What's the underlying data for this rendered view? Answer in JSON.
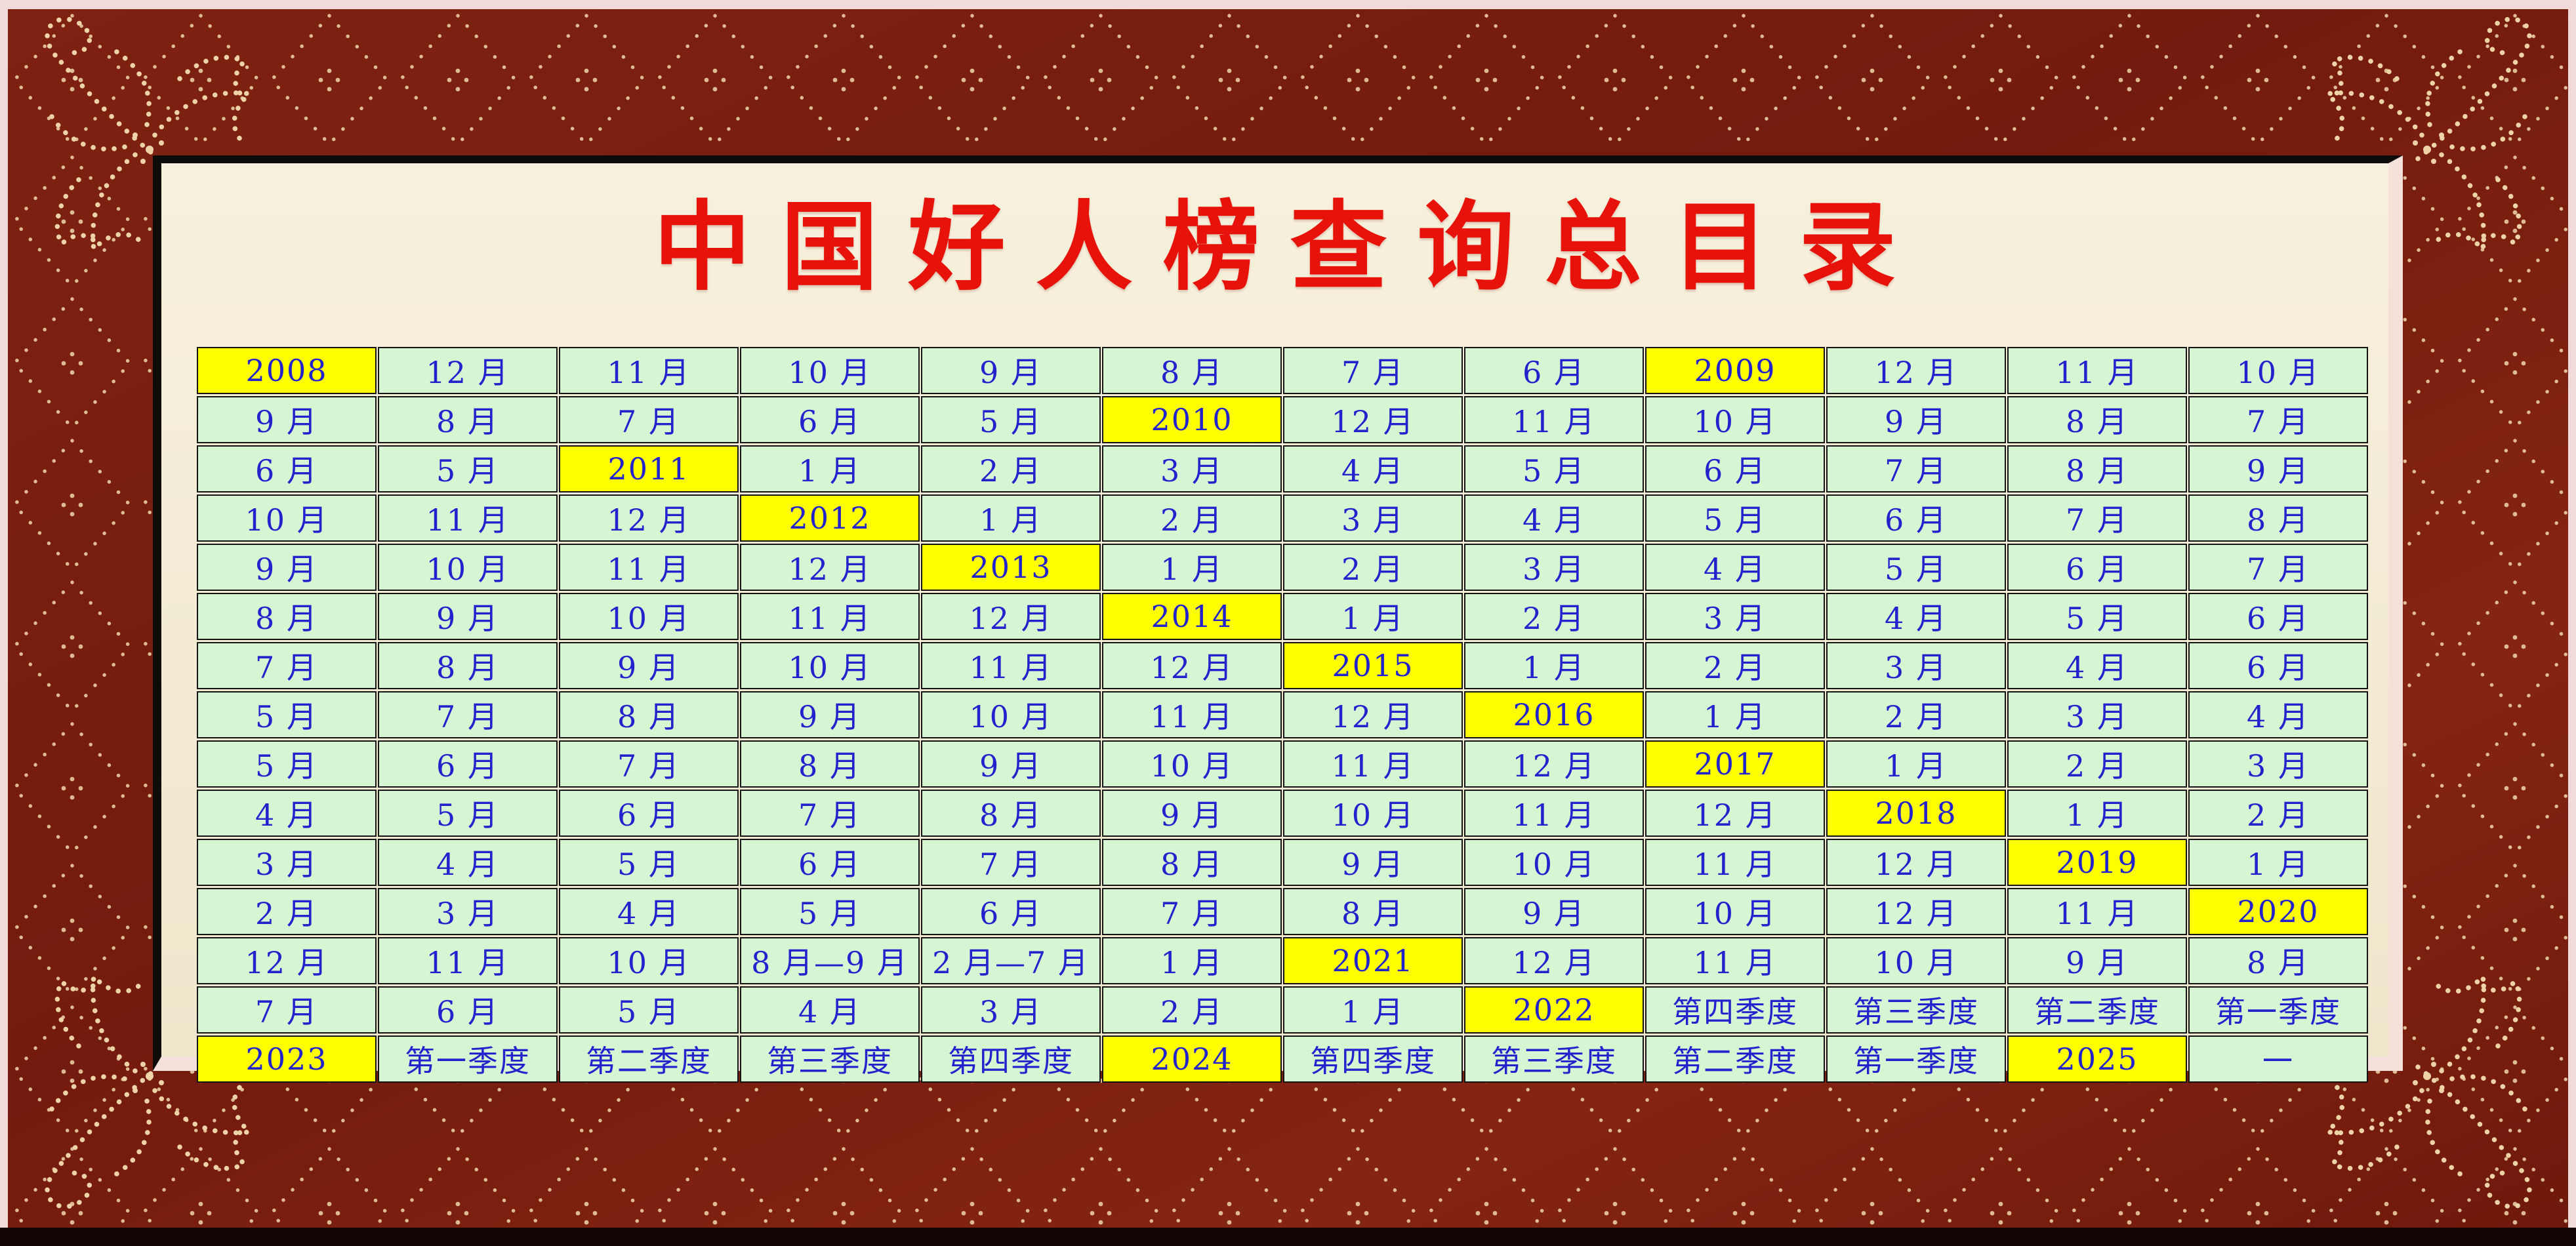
{
  "title": "中国好人榜查询总目录",
  "colors": {
    "frame_maroon": "#7c2012",
    "frame_dots_gold": "#ecd0a4",
    "outer_edge_pink": "#f3dada",
    "panel_cream": "#f4ecd7",
    "panel_shadow_black": "#0d0c0a",
    "panel_band_pink": "#f6e1da",
    "cell_green": "#d6f5d2",
    "year_highlight_yellow": "#ffff02",
    "cell_text_blue": "#2323cd",
    "title_red": "#e7120a"
  },
  "table": {
    "columns": 12,
    "rows": [
      [
        {
          "t": "2008",
          "y": 1
        },
        {
          "t": "12 月"
        },
        {
          "t": "11 月"
        },
        {
          "t": "10 月"
        },
        {
          "t": "9 月"
        },
        {
          "t": "8 月"
        },
        {
          "t": "7 月"
        },
        {
          "t": "6 月"
        },
        {
          "t": "2009",
          "y": 1
        },
        {
          "t": "12 月"
        },
        {
          "t": "11 月"
        },
        {
          "t": "10 月"
        }
      ],
      [
        {
          "t": "9 月"
        },
        {
          "t": "8 月"
        },
        {
          "t": "7 月"
        },
        {
          "t": "6 月"
        },
        {
          "t": "5 月"
        },
        {
          "t": "2010",
          "y": 1
        },
        {
          "t": "12 月"
        },
        {
          "t": "11 月"
        },
        {
          "t": "10 月"
        },
        {
          "t": "9 月"
        },
        {
          "t": "8 月"
        },
        {
          "t": "7 月"
        }
      ],
      [
        {
          "t": "6 月"
        },
        {
          "t": "5 月"
        },
        {
          "t": "2011",
          "y": 1
        },
        {
          "t": "1 月"
        },
        {
          "t": "2 月"
        },
        {
          "t": "3 月"
        },
        {
          "t": "4 月"
        },
        {
          "t": "5 月"
        },
        {
          "t": "6 月"
        },
        {
          "t": "7 月"
        },
        {
          "t": "8 月"
        },
        {
          "t": "9 月"
        }
      ],
      [
        {
          "t": "10 月"
        },
        {
          "t": "11 月"
        },
        {
          "t": "12 月"
        },
        {
          "t": "2012",
          "y": 1
        },
        {
          "t": "1 月"
        },
        {
          "t": "2 月"
        },
        {
          "t": "3 月"
        },
        {
          "t": "4 月"
        },
        {
          "t": "5 月"
        },
        {
          "t": "6 月"
        },
        {
          "t": "7 月"
        },
        {
          "t": "8 月"
        }
      ],
      [
        {
          "t": "9 月"
        },
        {
          "t": "10 月"
        },
        {
          "t": "11 月"
        },
        {
          "t": "12 月"
        },
        {
          "t": "2013",
          "y": 1
        },
        {
          "t": "1 月"
        },
        {
          "t": "2 月"
        },
        {
          "t": "3 月"
        },
        {
          "t": "4 月"
        },
        {
          "t": "5 月"
        },
        {
          "t": "6 月"
        },
        {
          "t": "7 月"
        }
      ],
      [
        {
          "t": "8 月"
        },
        {
          "t": "9 月"
        },
        {
          "t": "10 月"
        },
        {
          "t": "11 月"
        },
        {
          "t": "12 月"
        },
        {
          "t": "2014",
          "y": 1
        },
        {
          "t": "1 月"
        },
        {
          "t": "2 月"
        },
        {
          "t": "3 月"
        },
        {
          "t": "4 月"
        },
        {
          "t": "5 月"
        },
        {
          "t": "6 月"
        }
      ],
      [
        {
          "t": "7 月"
        },
        {
          "t": "8 月"
        },
        {
          "t": "9 月"
        },
        {
          "t": "10 月"
        },
        {
          "t": "11 月"
        },
        {
          "t": "12 月"
        },
        {
          "t": "2015",
          "y": 1
        },
        {
          "t": "1 月"
        },
        {
          "t": "2 月"
        },
        {
          "t": "3 月"
        },
        {
          "t": "4 月"
        },
        {
          "t": "6 月"
        }
      ],
      [
        {
          "t": "5 月"
        },
        {
          "t": "7 月"
        },
        {
          "t": "8 月"
        },
        {
          "t": "9 月"
        },
        {
          "t": "10 月"
        },
        {
          "t": "11 月"
        },
        {
          "t": "12 月"
        },
        {
          "t": "2016",
          "y": 1
        },
        {
          "t": "1 月"
        },
        {
          "t": "2 月"
        },
        {
          "t": "3 月"
        },
        {
          "t": "4 月"
        }
      ],
      [
        {
          "t": "5 月"
        },
        {
          "t": "6 月"
        },
        {
          "t": "7 月"
        },
        {
          "t": "8 月"
        },
        {
          "t": "9 月"
        },
        {
          "t": "10 月"
        },
        {
          "t": "11 月"
        },
        {
          "t": "12 月"
        },
        {
          "t": "2017",
          "y": 1
        },
        {
          "t": "1 月"
        },
        {
          "t": "2 月"
        },
        {
          "t": "3 月"
        }
      ],
      [
        {
          "t": "4 月"
        },
        {
          "t": "5 月"
        },
        {
          "t": "6 月"
        },
        {
          "t": "7 月"
        },
        {
          "t": "8 月"
        },
        {
          "t": "9 月"
        },
        {
          "t": "10 月"
        },
        {
          "t": "11 月"
        },
        {
          "t": "12 月"
        },
        {
          "t": "2018",
          "y": 1
        },
        {
          "t": "1 月"
        },
        {
          "t": "2 月"
        }
      ],
      [
        {
          "t": "3 月"
        },
        {
          "t": "4 月"
        },
        {
          "t": "5 月"
        },
        {
          "t": "6 月"
        },
        {
          "t": "7 月"
        },
        {
          "t": "8 月"
        },
        {
          "t": "9 月"
        },
        {
          "t": "10 月"
        },
        {
          "t": "11 月"
        },
        {
          "t": "12 月"
        },
        {
          "t": "2019",
          "y": 1
        },
        {
          "t": "1 月"
        }
      ],
      [
        {
          "t": "2 月"
        },
        {
          "t": "3 月"
        },
        {
          "t": "4 月"
        },
        {
          "t": "5 月"
        },
        {
          "t": "6 月"
        },
        {
          "t": "7 月"
        },
        {
          "t": "8 月"
        },
        {
          "t": "9 月"
        },
        {
          "t": "10 月"
        },
        {
          "t": "12 月"
        },
        {
          "t": "11 月"
        },
        {
          "t": "2020",
          "y": 1
        }
      ],
      [
        {
          "t": "12 月"
        },
        {
          "t": "11 月"
        },
        {
          "t": "10 月"
        },
        {
          "t": "8 月—9 月"
        },
        {
          "t": "2 月—7 月"
        },
        {
          "t": "1 月"
        },
        {
          "t": "2021",
          "y": 1
        },
        {
          "t": "12 月"
        },
        {
          "t": "11 月"
        },
        {
          "t": "10 月"
        },
        {
          "t": "9 月"
        },
        {
          "t": "8 月"
        }
      ],
      [
        {
          "t": "7 月"
        },
        {
          "t": "6 月"
        },
        {
          "t": "5 月"
        },
        {
          "t": "4 月"
        },
        {
          "t": "3 月"
        },
        {
          "t": "2 月"
        },
        {
          "t": "1 月"
        },
        {
          "t": "2022",
          "y": 1
        },
        {
          "t": "第四季度"
        },
        {
          "t": "第三季度"
        },
        {
          "t": "第二季度"
        },
        {
          "t": "第一季度"
        }
      ],
      [
        {
          "t": "2023",
          "y": 1
        },
        {
          "t": "第一季度"
        },
        {
          "t": "第二季度"
        },
        {
          "t": "第三季度"
        },
        {
          "t": "第四季度"
        },
        {
          "t": "2024",
          "y": 1
        },
        {
          "t": "第四季度"
        },
        {
          "t": "第三季度"
        },
        {
          "t": "第二季度"
        },
        {
          "t": "第一季度"
        },
        {
          "t": "2025",
          "y": 1
        },
        {
          "t": "一"
        }
      ]
    ]
  }
}
